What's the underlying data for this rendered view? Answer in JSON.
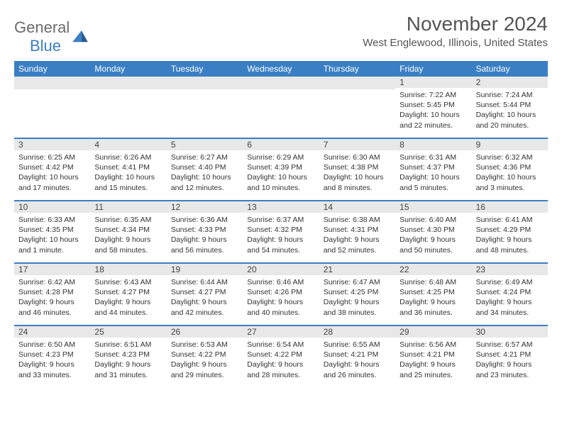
{
  "colors": {
    "accent": "#3a7fc4",
    "header_text": "#555555",
    "logo_grey": "#6b6b6b",
    "daynum_bg": "#e8e8e8",
    "body_text": "#333333",
    "white": "#ffffff"
  },
  "logo": {
    "word1": "General",
    "word2": "Blue"
  },
  "title": "November 2024",
  "location": "West Englewood, Illinois, United States",
  "weekdays": [
    "Sunday",
    "Monday",
    "Tuesday",
    "Wednesday",
    "Thursday",
    "Friday",
    "Saturday"
  ],
  "weeks": [
    [
      {
        "n": "",
        "sunrise": "",
        "sunset": "",
        "daylight1": "",
        "daylight2": ""
      },
      {
        "n": "",
        "sunrise": "",
        "sunset": "",
        "daylight1": "",
        "daylight2": ""
      },
      {
        "n": "",
        "sunrise": "",
        "sunset": "",
        "daylight1": "",
        "daylight2": ""
      },
      {
        "n": "",
        "sunrise": "",
        "sunset": "",
        "daylight1": "",
        "daylight2": ""
      },
      {
        "n": "",
        "sunrise": "",
        "sunset": "",
        "daylight1": "",
        "daylight2": ""
      },
      {
        "n": "1",
        "sunrise": "Sunrise: 7:22 AM",
        "sunset": "Sunset: 5:45 PM",
        "daylight1": "Daylight: 10 hours",
        "daylight2": "and 22 minutes."
      },
      {
        "n": "2",
        "sunrise": "Sunrise: 7:24 AM",
        "sunset": "Sunset: 5:44 PM",
        "daylight1": "Daylight: 10 hours",
        "daylight2": "and 20 minutes."
      }
    ],
    [
      {
        "n": "3",
        "sunrise": "Sunrise: 6:25 AM",
        "sunset": "Sunset: 4:42 PM",
        "daylight1": "Daylight: 10 hours",
        "daylight2": "and 17 minutes."
      },
      {
        "n": "4",
        "sunrise": "Sunrise: 6:26 AM",
        "sunset": "Sunset: 4:41 PM",
        "daylight1": "Daylight: 10 hours",
        "daylight2": "and 15 minutes."
      },
      {
        "n": "5",
        "sunrise": "Sunrise: 6:27 AM",
        "sunset": "Sunset: 4:40 PM",
        "daylight1": "Daylight: 10 hours",
        "daylight2": "and 12 minutes."
      },
      {
        "n": "6",
        "sunrise": "Sunrise: 6:29 AM",
        "sunset": "Sunset: 4:39 PM",
        "daylight1": "Daylight: 10 hours",
        "daylight2": "and 10 minutes."
      },
      {
        "n": "7",
        "sunrise": "Sunrise: 6:30 AM",
        "sunset": "Sunset: 4:38 PM",
        "daylight1": "Daylight: 10 hours",
        "daylight2": "and 8 minutes."
      },
      {
        "n": "8",
        "sunrise": "Sunrise: 6:31 AM",
        "sunset": "Sunset: 4:37 PM",
        "daylight1": "Daylight: 10 hours",
        "daylight2": "and 5 minutes."
      },
      {
        "n": "9",
        "sunrise": "Sunrise: 6:32 AM",
        "sunset": "Sunset: 4:36 PM",
        "daylight1": "Daylight: 10 hours",
        "daylight2": "and 3 minutes."
      }
    ],
    [
      {
        "n": "10",
        "sunrise": "Sunrise: 6:33 AM",
        "sunset": "Sunset: 4:35 PM",
        "daylight1": "Daylight: 10 hours",
        "daylight2": "and 1 minute."
      },
      {
        "n": "11",
        "sunrise": "Sunrise: 6:35 AM",
        "sunset": "Sunset: 4:34 PM",
        "daylight1": "Daylight: 9 hours",
        "daylight2": "and 58 minutes."
      },
      {
        "n": "12",
        "sunrise": "Sunrise: 6:36 AM",
        "sunset": "Sunset: 4:33 PM",
        "daylight1": "Daylight: 9 hours",
        "daylight2": "and 56 minutes."
      },
      {
        "n": "13",
        "sunrise": "Sunrise: 6:37 AM",
        "sunset": "Sunset: 4:32 PM",
        "daylight1": "Daylight: 9 hours",
        "daylight2": "and 54 minutes."
      },
      {
        "n": "14",
        "sunrise": "Sunrise: 6:38 AM",
        "sunset": "Sunset: 4:31 PM",
        "daylight1": "Daylight: 9 hours",
        "daylight2": "and 52 minutes."
      },
      {
        "n": "15",
        "sunrise": "Sunrise: 6:40 AM",
        "sunset": "Sunset: 4:30 PM",
        "daylight1": "Daylight: 9 hours",
        "daylight2": "and 50 minutes."
      },
      {
        "n": "16",
        "sunrise": "Sunrise: 6:41 AM",
        "sunset": "Sunset: 4:29 PM",
        "daylight1": "Daylight: 9 hours",
        "daylight2": "and 48 minutes."
      }
    ],
    [
      {
        "n": "17",
        "sunrise": "Sunrise: 6:42 AM",
        "sunset": "Sunset: 4:28 PM",
        "daylight1": "Daylight: 9 hours",
        "daylight2": "and 46 minutes."
      },
      {
        "n": "18",
        "sunrise": "Sunrise: 6:43 AM",
        "sunset": "Sunset: 4:27 PM",
        "daylight1": "Daylight: 9 hours",
        "daylight2": "and 44 minutes."
      },
      {
        "n": "19",
        "sunrise": "Sunrise: 6:44 AM",
        "sunset": "Sunset: 4:27 PM",
        "daylight1": "Daylight: 9 hours",
        "daylight2": "and 42 minutes."
      },
      {
        "n": "20",
        "sunrise": "Sunrise: 6:46 AM",
        "sunset": "Sunset: 4:26 PM",
        "daylight1": "Daylight: 9 hours",
        "daylight2": "and 40 minutes."
      },
      {
        "n": "21",
        "sunrise": "Sunrise: 6:47 AM",
        "sunset": "Sunset: 4:25 PM",
        "daylight1": "Daylight: 9 hours",
        "daylight2": "and 38 minutes."
      },
      {
        "n": "22",
        "sunrise": "Sunrise: 6:48 AM",
        "sunset": "Sunset: 4:25 PM",
        "daylight1": "Daylight: 9 hours",
        "daylight2": "and 36 minutes."
      },
      {
        "n": "23",
        "sunrise": "Sunrise: 6:49 AM",
        "sunset": "Sunset: 4:24 PM",
        "daylight1": "Daylight: 9 hours",
        "daylight2": "and 34 minutes."
      }
    ],
    [
      {
        "n": "24",
        "sunrise": "Sunrise: 6:50 AM",
        "sunset": "Sunset: 4:23 PM",
        "daylight1": "Daylight: 9 hours",
        "daylight2": "and 33 minutes."
      },
      {
        "n": "25",
        "sunrise": "Sunrise: 6:51 AM",
        "sunset": "Sunset: 4:23 PM",
        "daylight1": "Daylight: 9 hours",
        "daylight2": "and 31 minutes."
      },
      {
        "n": "26",
        "sunrise": "Sunrise: 6:53 AM",
        "sunset": "Sunset: 4:22 PM",
        "daylight1": "Daylight: 9 hours",
        "daylight2": "and 29 minutes."
      },
      {
        "n": "27",
        "sunrise": "Sunrise: 6:54 AM",
        "sunset": "Sunset: 4:22 PM",
        "daylight1": "Daylight: 9 hours",
        "daylight2": "and 28 minutes."
      },
      {
        "n": "28",
        "sunrise": "Sunrise: 6:55 AM",
        "sunset": "Sunset: 4:21 PM",
        "daylight1": "Daylight: 9 hours",
        "daylight2": "and 26 minutes."
      },
      {
        "n": "29",
        "sunrise": "Sunrise: 6:56 AM",
        "sunset": "Sunset: 4:21 PM",
        "daylight1": "Daylight: 9 hours",
        "daylight2": "and 25 minutes."
      },
      {
        "n": "30",
        "sunrise": "Sunrise: 6:57 AM",
        "sunset": "Sunset: 4:21 PM",
        "daylight1": "Daylight: 9 hours",
        "daylight2": "and 23 minutes."
      }
    ]
  ]
}
